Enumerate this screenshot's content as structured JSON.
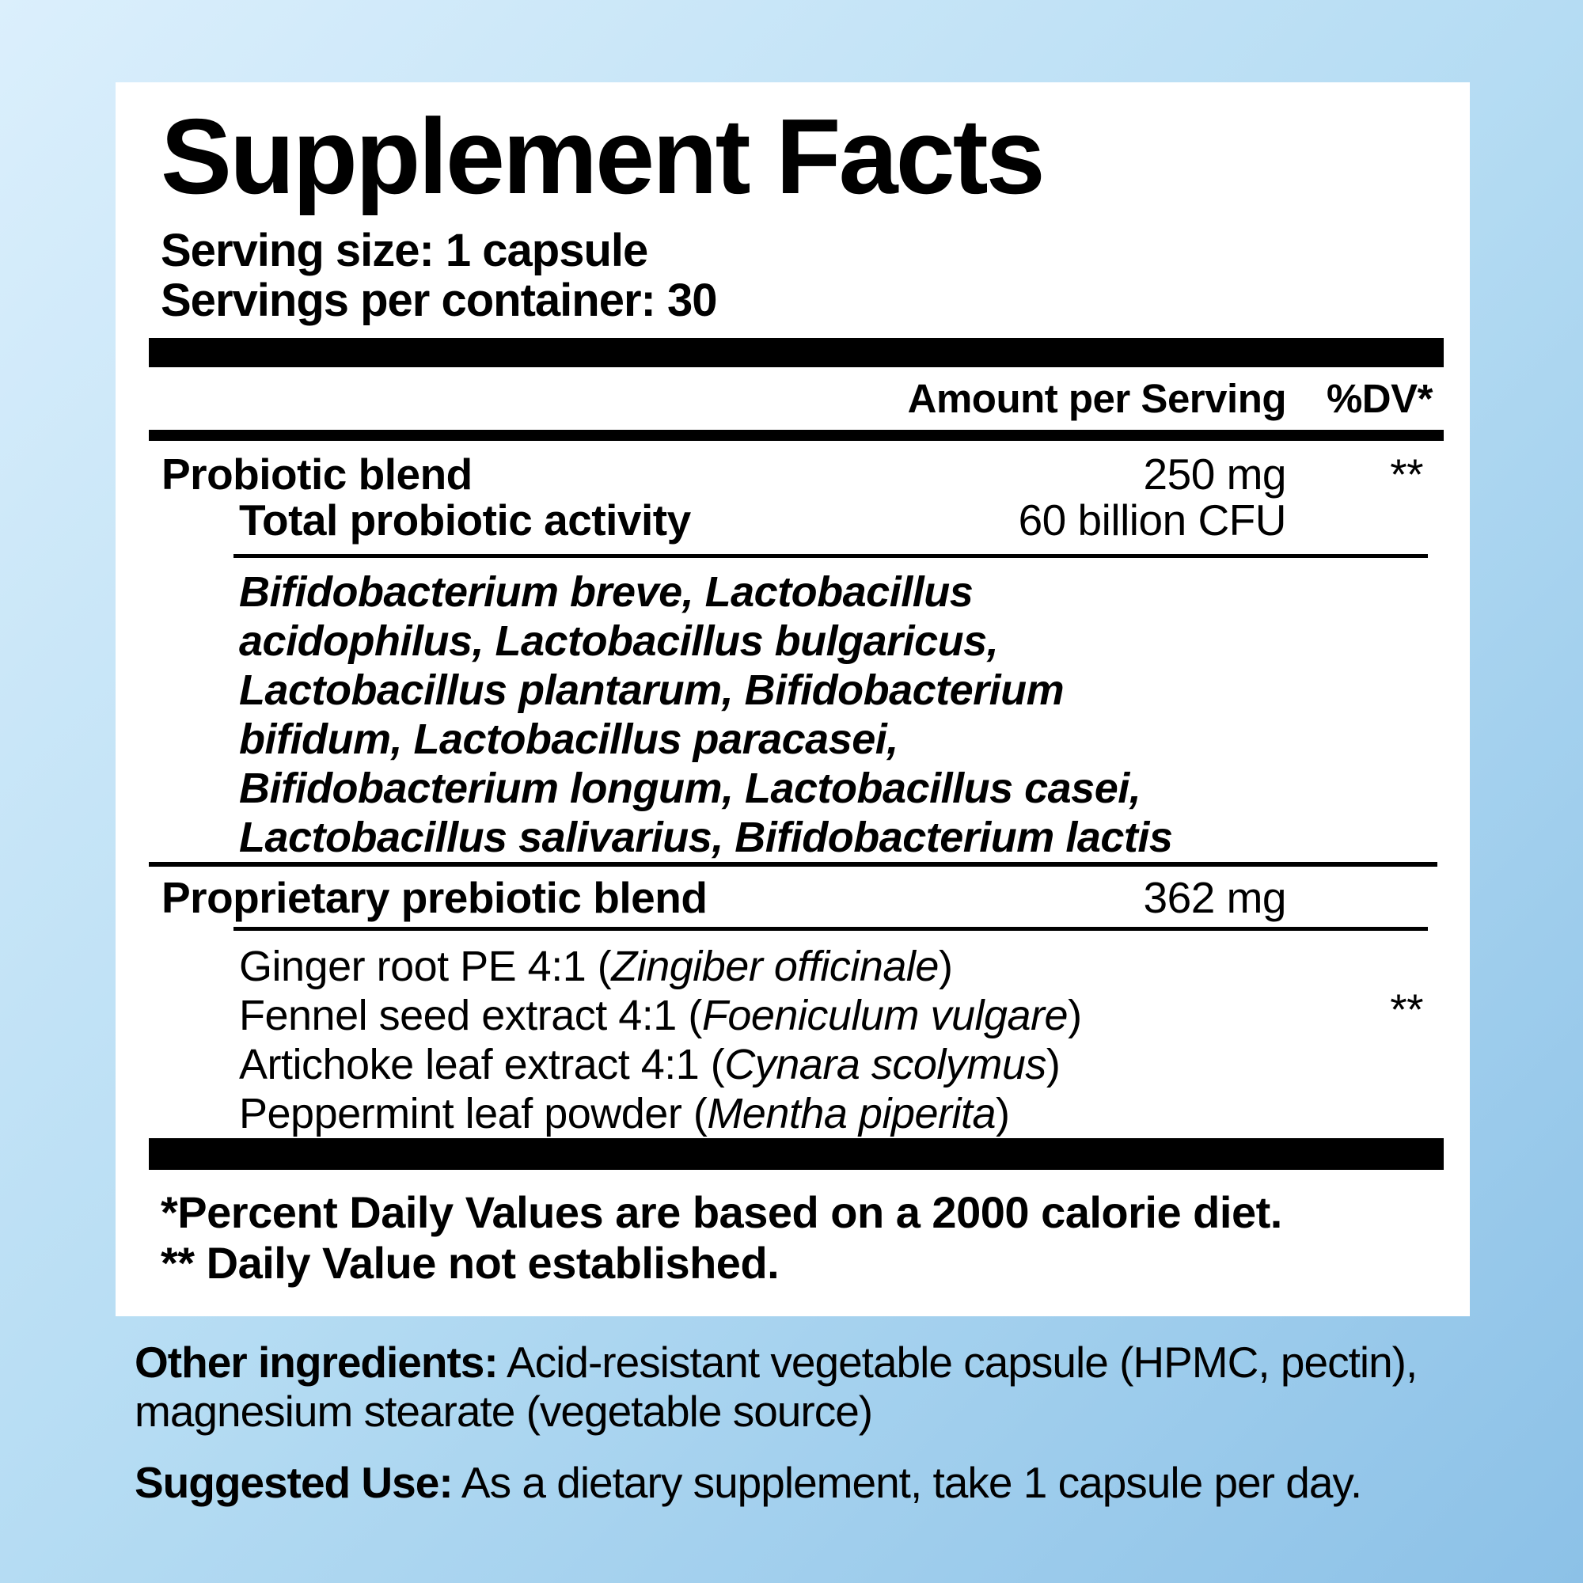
{
  "colors": {
    "background_top_left": "#dbeffc",
    "background_bottom_right": "#8cc1e7",
    "panel_background": "#ffffff",
    "text": "#000000",
    "divider_bars": "#000000"
  },
  "label": {
    "title": "Supplement Facts",
    "serving_size": "Serving size: 1 capsule",
    "servings_per_container": "Servings per container: 30"
  },
  "table": {
    "header": {
      "amount": "Amount per Serving",
      "dv": "%DV*"
    },
    "probiotic": {
      "name": "Probiotic blend",
      "amount": "250 mg",
      "dv": "**",
      "activity": {
        "name": "Total probiotic activity",
        "amount": "60 billion CFU"
      },
      "species": [
        "Bifidobacterium breve, Lactobacillus",
        "acidophilus, Lactobacillus bulgaricus,",
        "Lactobacillus plantarum, Bifidobacterium",
        "bifidum, Lactobacillus paracasei,",
        "Bifidobacterium longum, Lactobacillus casei,",
        "Lactobacillus salivarius, Bifidobacterium lactis"
      ]
    },
    "prebiotic": {
      "name": "Proprietary prebiotic blend",
      "amount": "362 mg",
      "dv": "**",
      "ingredients": [
        {
          "text": "Ginger root PE 4:1 (",
          "latin": "Zingiber officinale",
          "end": ")"
        },
        {
          "text": "Fennel seed extract 4:1 (",
          "latin": "Foeniculum vulgare",
          "end": ")"
        },
        {
          "text": "Artichoke leaf extract 4:1 (",
          "latin": "Cynara scolymus",
          "end": ")"
        },
        {
          "text": "Peppermint leaf powder (",
          "latin": "Mentha piperita",
          "end": ")"
        }
      ]
    }
  },
  "footnotes": {
    "daily_values": "*Percent Daily Values are based on a 2000 calorie diet.",
    "not_established": "** Daily Value not established."
  },
  "other_ingredients": {
    "label": "Other ingredients:",
    "line1": " Acid-resistant vegetable capsule (HPMC, pectin),",
    "line2": "magnesium stearate (vegetable source)"
  },
  "suggested_use": {
    "label": "Suggested Use:",
    "text": " As a dietary supplement, take 1 capsule per day."
  }
}
